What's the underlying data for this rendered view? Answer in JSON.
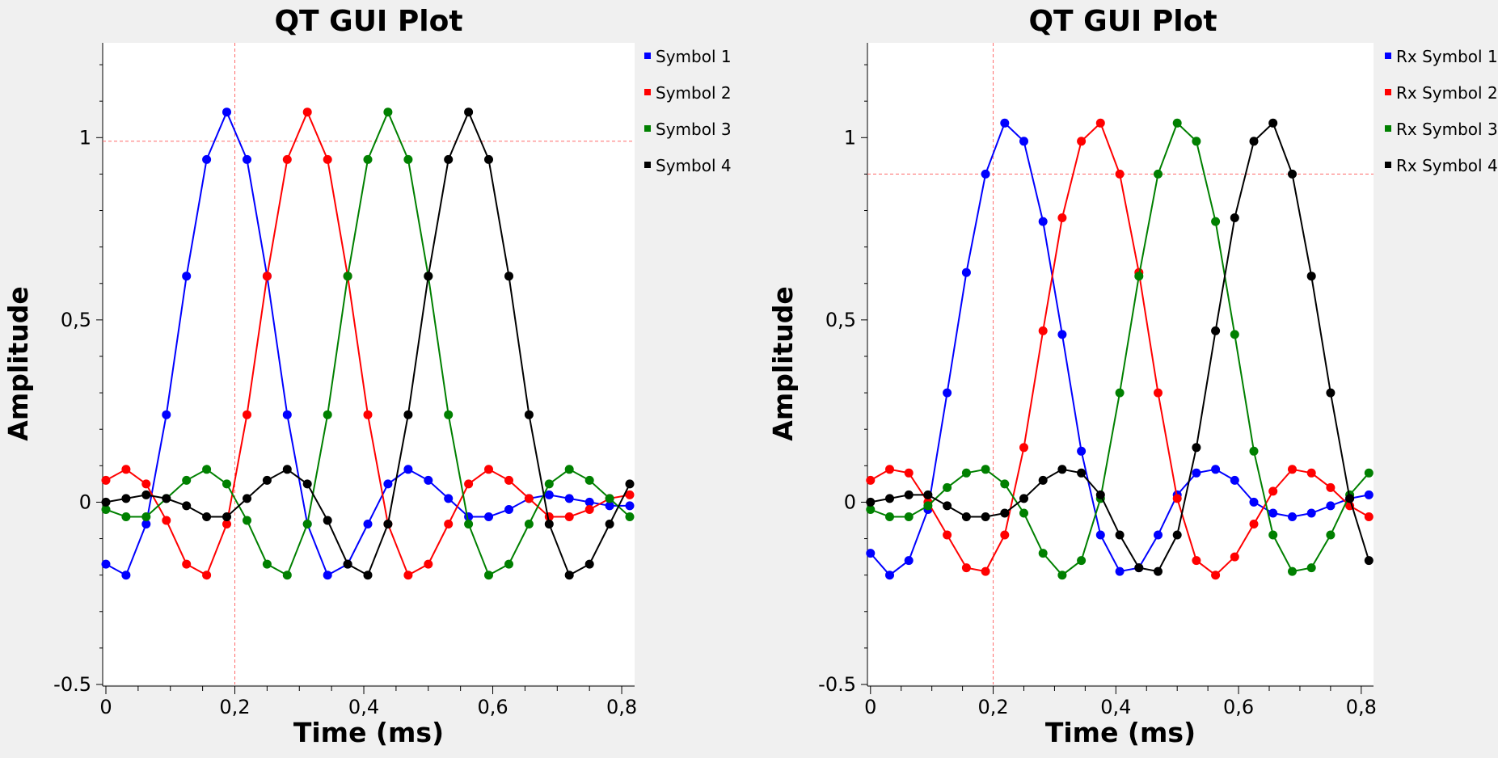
{
  "colors": {
    "page": "#f0f0f0",
    "plot_bg": "#ffffff",
    "axis": "#000000",
    "marker_line": "#ff6a6a"
  },
  "chart_data": [
    {
      "type": "line",
      "title": "QT GUI Plot",
      "xlabel": "Time (ms)",
      "ylabel": "Amplitude",
      "xlim": [
        -0.005,
        0.82
      ],
      "ylim": [
        -0.5,
        1.26
      ],
      "xticks": [
        0,
        0.2,
        0.4,
        0.6,
        0.8
      ],
      "xtick_labels": [
        "0",
        "0,2",
        "0,4",
        "0,6",
        "0,8"
      ],
      "yticks": [
        -0.5,
        0,
        0.5,
        1
      ],
      "ytick_labels": [
        "-0.5",
        "0",
        "0,5",
        "1"
      ],
      "markers": {
        "x": 0.2,
        "y": 0.99
      },
      "grid": false,
      "legend_position": "right",
      "x": [
        0,
        0.03125,
        0.0625,
        0.09375,
        0.125,
        0.15625,
        0.1875,
        0.21875,
        0.25,
        0.28125,
        0.3125,
        0.34375,
        0.375,
        0.40625,
        0.4375,
        0.46875,
        0.5,
        0.53125,
        0.5625,
        0.59375,
        0.625,
        0.65625,
        0.6875,
        0.71875,
        0.75,
        0.78125,
        0.8125
      ],
      "series": [
        {
          "name": "Symbol 1",
          "color": "#0000ff",
          "values": [
            -0.17,
            -0.2,
            -0.06,
            0.24,
            0.62,
            0.94,
            1.07,
            0.94,
            0.62,
            0.24,
            -0.06,
            -0.2,
            -0.17,
            -0.06,
            0.05,
            0.09,
            0.06,
            0.01,
            -0.04,
            -0.04,
            -0.02,
            0.01,
            0.02,
            0.01,
            0.0,
            -0.01,
            -0.01
          ]
        },
        {
          "name": "Symbol 2",
          "color": "#ff0000",
          "values": [
            0.06,
            0.09,
            0.05,
            -0.05,
            -0.17,
            -0.2,
            -0.06,
            0.24,
            0.62,
            0.94,
            1.07,
            0.94,
            0.62,
            0.24,
            -0.06,
            -0.2,
            -0.17,
            -0.06,
            0.05,
            0.09,
            0.06,
            0.01,
            -0.04,
            -0.04,
            -0.02,
            0.01,
            0.02
          ]
        },
        {
          "name": "Symbol 3",
          "color": "#008000",
          "values": [
            -0.02,
            -0.04,
            -0.04,
            0.01,
            0.06,
            0.09,
            0.05,
            -0.05,
            -0.17,
            -0.2,
            -0.06,
            0.24,
            0.62,
            0.94,
            1.07,
            0.94,
            0.62,
            0.24,
            -0.06,
            -0.2,
            -0.17,
            -0.06,
            0.05,
            0.09,
            0.06,
            0.01,
            -0.04
          ]
        },
        {
          "name": "Symbol 4",
          "color": "#000000",
          "values": [
            0.0,
            0.01,
            0.02,
            0.01,
            -0.01,
            -0.04,
            -0.04,
            0.01,
            0.06,
            0.09,
            0.05,
            -0.05,
            -0.17,
            -0.2,
            -0.06,
            0.24,
            0.62,
            0.94,
            1.07,
            0.94,
            0.62,
            0.24,
            -0.06,
            -0.2,
            -0.17,
            -0.06,
            0.05
          ]
        }
      ]
    },
    {
      "type": "line",
      "title": "QT GUI Plot",
      "xlabel": "Time (ms)",
      "ylabel": "Amplitude",
      "xlim": [
        -0.005,
        0.82
      ],
      "ylim": [
        -0.5,
        1.26
      ],
      "xticks": [
        0,
        0.2,
        0.4,
        0.6,
        0.8
      ],
      "xtick_labels": [
        "0",
        "0,2",
        "0,4",
        "0,6",
        "0,8"
      ],
      "yticks": [
        -0.5,
        0,
        0.5,
        1
      ],
      "ytick_labels": [
        "-0.5",
        "0",
        "0,5",
        "1"
      ],
      "markers": {
        "x": 0.2,
        "y": 0.9
      },
      "grid": false,
      "legend_position": "right",
      "x": [
        0,
        0.03125,
        0.0625,
        0.09375,
        0.125,
        0.15625,
        0.1875,
        0.21875,
        0.25,
        0.28125,
        0.3125,
        0.34375,
        0.375,
        0.40625,
        0.4375,
        0.46875,
        0.5,
        0.53125,
        0.5625,
        0.59375,
        0.625,
        0.65625,
        0.6875,
        0.71875,
        0.75,
        0.78125,
        0.8125
      ],
      "series": [
        {
          "name": "Rx Symbol 1",
          "color": "#0000ff",
          "values": [
            -0.14,
            -0.2,
            -0.16,
            -0.02,
            0.3,
            0.63,
            0.9,
            1.04,
            0.99,
            0.77,
            0.46,
            0.14,
            -0.09,
            -0.19,
            -0.18,
            -0.09,
            0.02,
            0.08,
            0.09,
            0.06,
            0.0,
            -0.03,
            -0.04,
            -0.03,
            -0.01,
            0.01,
            0.02
          ]
        },
        {
          "name": "Rx Symbol 2",
          "color": "#ff0000",
          "values": [
            0.06,
            0.09,
            0.08,
            0.0,
            -0.09,
            -0.18,
            -0.19,
            -0.09,
            0.15,
            0.47,
            0.78,
            0.99,
            1.04,
            0.9,
            0.63,
            0.3,
            0.01,
            -0.16,
            -0.2,
            -0.15,
            -0.06,
            0.03,
            0.09,
            0.08,
            0.04,
            -0.01,
            -0.04
          ]
        },
        {
          "name": "Rx Symbol 3",
          "color": "#008000",
          "values": [
            -0.02,
            -0.04,
            -0.04,
            -0.01,
            0.04,
            0.08,
            0.09,
            0.05,
            -0.03,
            -0.14,
            -0.2,
            -0.16,
            0.01,
            0.3,
            0.62,
            0.9,
            1.04,
            0.99,
            0.77,
            0.46,
            0.14,
            -0.09,
            -0.19,
            -0.18,
            -0.09,
            0.02,
            0.08
          ]
        },
        {
          "name": "Rx Symbol 4",
          "color": "#000000",
          "values": [
            0.0,
            0.01,
            0.02,
            0.02,
            -0.01,
            -0.04,
            -0.04,
            -0.03,
            0.01,
            0.06,
            0.09,
            0.08,
            0.02,
            -0.09,
            -0.18,
            -0.19,
            -0.09,
            0.15,
            0.47,
            0.78,
            0.99,
            1.04,
            0.9,
            0.62,
            0.3,
            0.01,
            -0.16
          ]
        }
      ]
    }
  ]
}
